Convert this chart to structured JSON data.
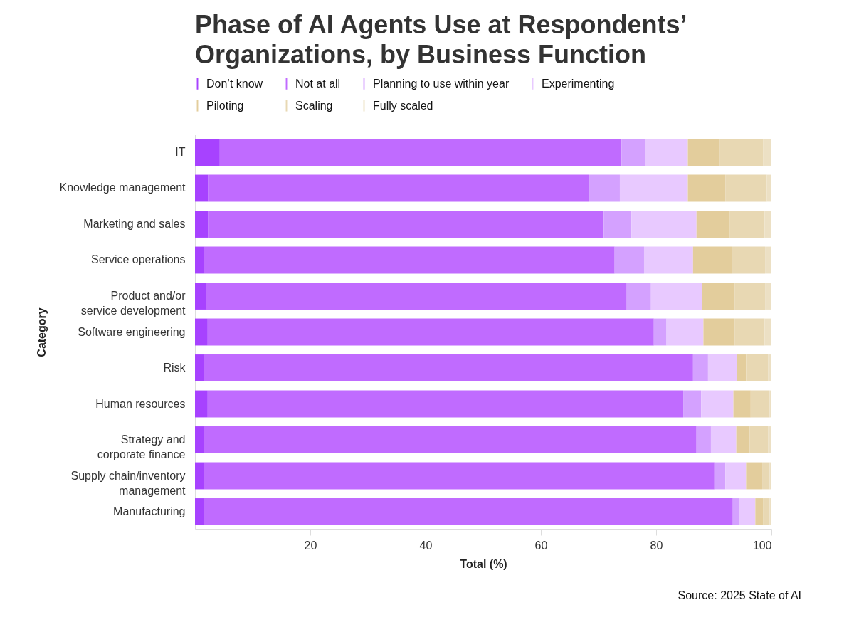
{
  "chart_data": {
    "type": "bar",
    "orientation": "horizontal",
    "stacked": true,
    "title": "Phase of AI Agents Use at Respondents’ Organizations, by Business Function",
    "xlabel": "Total (%)",
    "ylabel": "Category",
    "categories": [
      "IT",
      "Knowledge management",
      "Marketing and sales",
      "Service operations",
      "Product and/or service development",
      "Software engineering",
      "Risk",
      "Human resources",
      "Strategy and corporate finance",
      "Supply chain/inventory management",
      "Manufacturing"
    ],
    "series": [
      {
        "name": "Don’t know",
        "color": "#a742ff",
        "values": [
          4.3,
          2.3,
          2.3,
          1.5,
          1.9,
          2.2,
          1.5,
          2.2,
          1.5,
          1.6,
          1.6
        ]
      },
      {
        "name": "Not at all",
        "color": "#c06bff",
        "values": [
          69.7,
          66.1,
          68.6,
          71.3,
          73.0,
          77.4,
          84.9,
          82.5,
          85.5,
          88.5,
          91.7
        ]
      },
      {
        "name": "Planning to use within year",
        "color": "#d4a1ff",
        "values": [
          4.1,
          5.3,
          4.8,
          5.1,
          4.2,
          2.2,
          2.6,
          3.1,
          2.5,
          1.9,
          1.1
        ]
      },
      {
        "name": "Experimenting",
        "color": "#e8c9ff",
        "values": [
          7.4,
          11.8,
          11.3,
          8.5,
          8.8,
          6.4,
          5.0,
          5.6,
          4.4,
          3.6,
          2.8
        ]
      },
      {
        "name": "Piloting",
        "color": "#e3cd9c",
        "values": [
          5.5,
          6.5,
          5.8,
          6.7,
          5.7,
          5.4,
          1.6,
          3.0,
          2.3,
          2.8,
          1.4
        ]
      },
      {
        "name": "Scaling",
        "color": "#e8d8b3",
        "values": [
          7.6,
          7.2,
          6.0,
          5.8,
          5.3,
          5.2,
          3.8,
          3.3,
          3.2,
          1.3,
          1.1
        ]
      },
      {
        "name": "Fully scaled",
        "color": "#ece0c4",
        "values": [
          1.4,
          0.8,
          1.2,
          1.1,
          1.1,
          1.2,
          0.6,
          0.3,
          0.6,
          0.3,
          0.3
        ]
      }
    ],
    "xlim": [
      0,
      100
    ],
    "xticks": [
      20,
      40,
      60,
      80,
      100
    ],
    "legend": "top left",
    "annotations": [
      "Source: 2025 State of AI"
    ]
  }
}
